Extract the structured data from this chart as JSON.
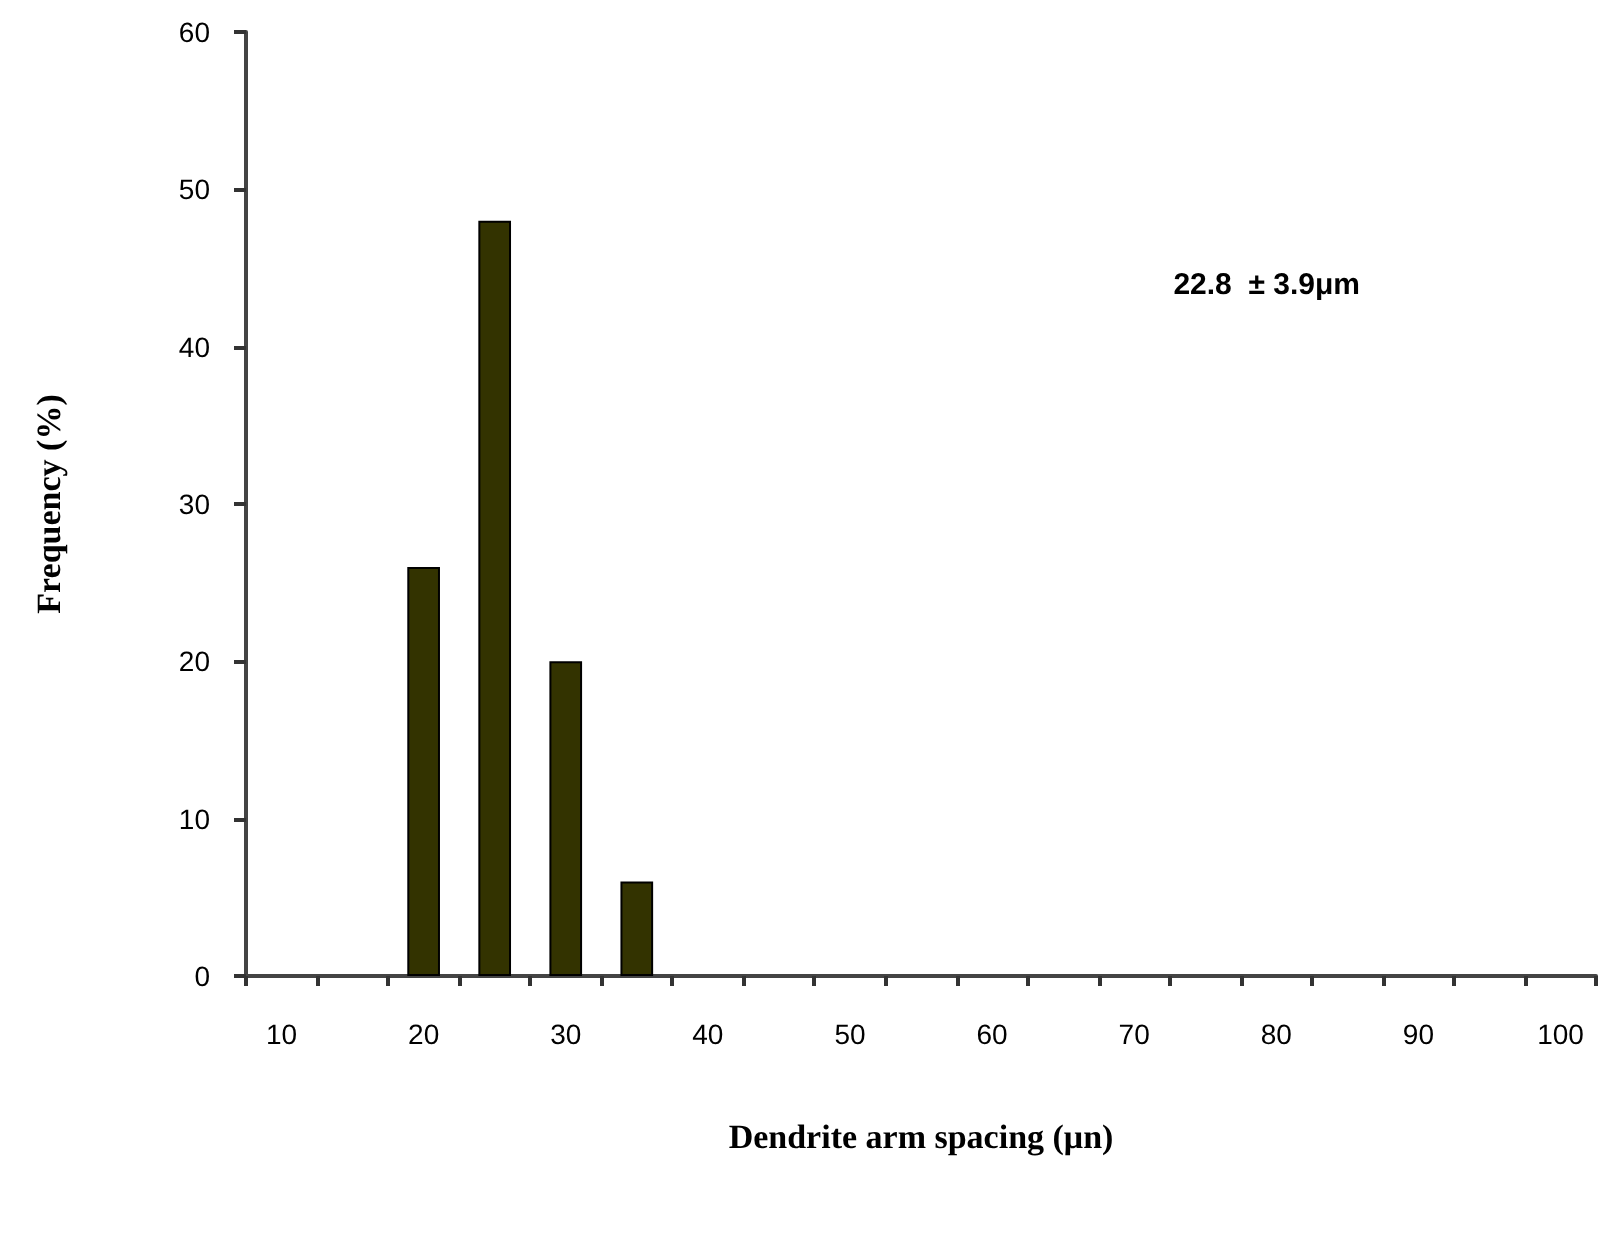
{
  "chart_data": {
    "type": "bar",
    "xlabel": "Dendrite arm spacing (μn)",
    "ylabel": "Frequency (%)",
    "categories": [
      "10",
      null,
      "20",
      null,
      "30",
      null,
      "40",
      null,
      "50",
      null,
      "60",
      null,
      "70",
      null,
      "80",
      null,
      "90",
      null,
      "100"
    ],
    "values": [
      0,
      0,
      26,
      48,
      20,
      6,
      0,
      0,
      0,
      0,
      0,
      0,
      0,
      0,
      0,
      0,
      0,
      0,
      0
    ],
    "color": "#333300",
    "ylim": [
      0,
      60
    ],
    "yticks": [
      0,
      10,
      20,
      30,
      40,
      50,
      60
    ],
    "grid": false,
    "annotations": [
      "22.8  ± 3.9μm"
    ]
  }
}
